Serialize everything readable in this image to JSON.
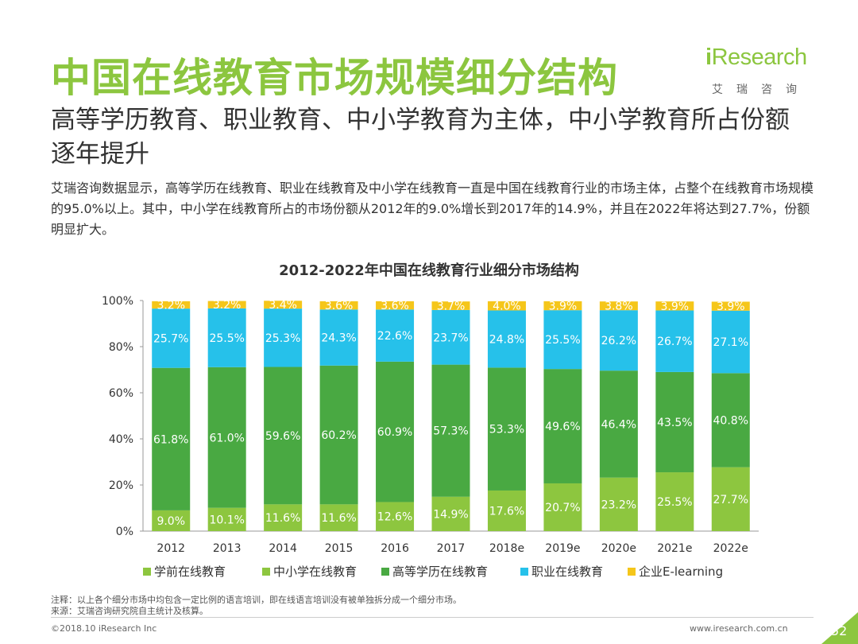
{
  "page": {
    "title": "中国在线教育市场规模细分结构",
    "subtitle": "高等学历教育、职业教育、中小学教育为主体，中小学教育所占份额逐年提升",
    "description": "艾瑞咨询数据显示，高等学历在线教育、职业在线教育及中小学在线教育一直是中国在线教育行业的市场主体，占整个在线教育市场规模的95.0%以上。其中，中小学在线教育所占的市场份额从2012年的9.0%增长到2017年的14.9%，并且在2022年将达到27.7%，份额明显扩大。",
    "logo_main": "Research",
    "logo_i": "i",
    "logo_sub": "艾瑞咨询",
    "note": "注释：以上各个细分市场中均包含一定比例的语言培训，即在线语言培训没有被单独拆分成一个细分市场。",
    "source": "来源：艾瑞咨询研究院自主统计及核算。",
    "copyright": "©2018.10 iResearch Inc",
    "website": "www.iresearch.com.cn",
    "page_number": "52"
  },
  "colors": {
    "title_green": "#8cc63f",
    "preschool": "#8dc63f",
    "k12": "#56b947",
    "higher": "#49a942",
    "vocational": "#26c1ea",
    "enterprise": "#f5c61a"
  },
  "chart_data": {
    "type": "bar",
    "stacked": true,
    "title": "2012-2022年中国在线教育行业细分市场结构",
    "categories": [
      "2012",
      "2013",
      "2014",
      "2015",
      "2016",
      "2017",
      "2018e",
      "2019e",
      "2020e",
      "2021e",
      "2022e"
    ],
    "ylim": [
      0,
      100
    ],
    "y_ticks": [
      "0%",
      "20%",
      "40%",
      "60%",
      "80%",
      "100%"
    ],
    "legend_position": "bottom",
    "series": [
      {
        "name": "学前在线教育",
        "values": [
          null,
          null,
          null,
          null,
          null,
          null,
          null,
          null,
          null,
          null,
          null
        ],
        "color": "#8dc63f"
      },
      {
        "name": "中小学在线教育",
        "values": [
          9.0,
          10.1,
          11.6,
          11.6,
          12.6,
          14.9,
          17.6,
          20.7,
          23.2,
          25.5,
          27.7
        ],
        "color": "#8dc63f"
      },
      {
        "name": "高等学历在线教育",
        "values": [
          61.8,
          61.0,
          59.6,
          60.2,
          60.9,
          57.3,
          53.3,
          49.6,
          46.4,
          43.5,
          40.8
        ],
        "color": "#49a942"
      },
      {
        "name": "职业在线教育",
        "values": [
          25.7,
          25.5,
          25.3,
          24.3,
          22.6,
          23.7,
          24.8,
          25.5,
          26.2,
          26.7,
          27.1
        ],
        "color": "#26c1ea"
      },
      {
        "name": "企业E-learning",
        "values": [
          3.2,
          3.2,
          3.4,
          3.6,
          3.6,
          3.7,
          4.0,
          3.9,
          3.8,
          3.9,
          3.9
        ],
        "color": "#f5c61a"
      }
    ]
  }
}
